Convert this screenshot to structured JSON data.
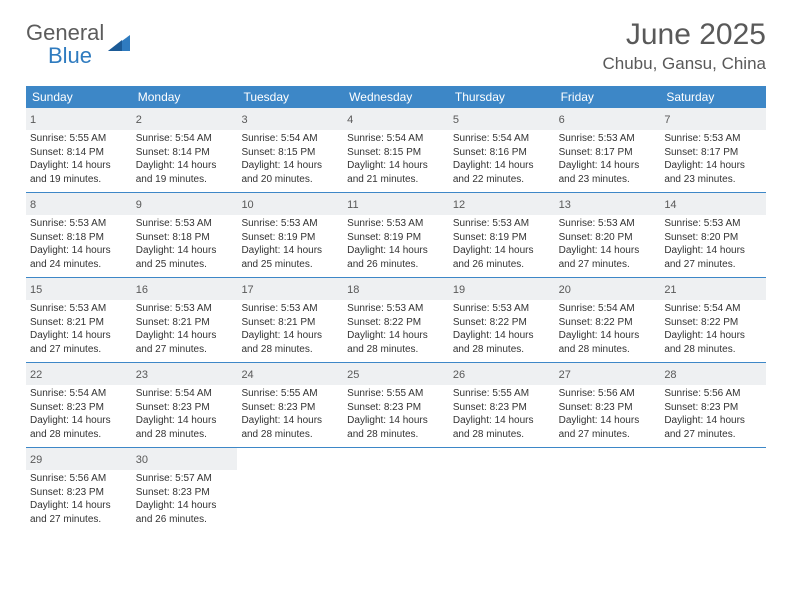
{
  "brand": {
    "part1": "General",
    "part2": "Blue"
  },
  "title": "June 2025",
  "location": "Chubu, Gansu, China",
  "colors": {
    "header_bg": "#3d87c7",
    "header_text": "#ffffff",
    "daynum_bg": "#eef0f2",
    "border": "#3d87c7",
    "text": "#333333",
    "title_text": "#595959"
  },
  "weekdays": [
    "Sunday",
    "Monday",
    "Tuesday",
    "Wednesday",
    "Thursday",
    "Friday",
    "Saturday"
  ],
  "days": [
    {
      "n": 1,
      "sunrise": "5:55 AM",
      "sunset": "8:14 PM",
      "daylight": "14 hours and 19 minutes."
    },
    {
      "n": 2,
      "sunrise": "5:54 AM",
      "sunset": "8:14 PM",
      "daylight": "14 hours and 19 minutes."
    },
    {
      "n": 3,
      "sunrise": "5:54 AM",
      "sunset": "8:15 PM",
      "daylight": "14 hours and 20 minutes."
    },
    {
      "n": 4,
      "sunrise": "5:54 AM",
      "sunset": "8:15 PM",
      "daylight": "14 hours and 21 minutes."
    },
    {
      "n": 5,
      "sunrise": "5:54 AM",
      "sunset": "8:16 PM",
      "daylight": "14 hours and 22 minutes."
    },
    {
      "n": 6,
      "sunrise": "5:53 AM",
      "sunset": "8:17 PM",
      "daylight": "14 hours and 23 minutes."
    },
    {
      "n": 7,
      "sunrise": "5:53 AM",
      "sunset": "8:17 PM",
      "daylight": "14 hours and 23 minutes."
    },
    {
      "n": 8,
      "sunrise": "5:53 AM",
      "sunset": "8:18 PM",
      "daylight": "14 hours and 24 minutes."
    },
    {
      "n": 9,
      "sunrise": "5:53 AM",
      "sunset": "8:18 PM",
      "daylight": "14 hours and 25 minutes."
    },
    {
      "n": 10,
      "sunrise": "5:53 AM",
      "sunset": "8:19 PM",
      "daylight": "14 hours and 25 minutes."
    },
    {
      "n": 11,
      "sunrise": "5:53 AM",
      "sunset": "8:19 PM",
      "daylight": "14 hours and 26 minutes."
    },
    {
      "n": 12,
      "sunrise": "5:53 AM",
      "sunset": "8:19 PM",
      "daylight": "14 hours and 26 minutes."
    },
    {
      "n": 13,
      "sunrise": "5:53 AM",
      "sunset": "8:20 PM",
      "daylight": "14 hours and 27 minutes."
    },
    {
      "n": 14,
      "sunrise": "5:53 AM",
      "sunset": "8:20 PM",
      "daylight": "14 hours and 27 minutes."
    },
    {
      "n": 15,
      "sunrise": "5:53 AM",
      "sunset": "8:21 PM",
      "daylight": "14 hours and 27 minutes."
    },
    {
      "n": 16,
      "sunrise": "5:53 AM",
      "sunset": "8:21 PM",
      "daylight": "14 hours and 27 minutes."
    },
    {
      "n": 17,
      "sunrise": "5:53 AM",
      "sunset": "8:21 PM",
      "daylight": "14 hours and 28 minutes."
    },
    {
      "n": 18,
      "sunrise": "5:53 AM",
      "sunset": "8:22 PM",
      "daylight": "14 hours and 28 minutes."
    },
    {
      "n": 19,
      "sunrise": "5:53 AM",
      "sunset": "8:22 PM",
      "daylight": "14 hours and 28 minutes."
    },
    {
      "n": 20,
      "sunrise": "5:54 AM",
      "sunset": "8:22 PM",
      "daylight": "14 hours and 28 minutes."
    },
    {
      "n": 21,
      "sunrise": "5:54 AM",
      "sunset": "8:22 PM",
      "daylight": "14 hours and 28 minutes."
    },
    {
      "n": 22,
      "sunrise": "5:54 AM",
      "sunset": "8:23 PM",
      "daylight": "14 hours and 28 minutes."
    },
    {
      "n": 23,
      "sunrise": "5:54 AM",
      "sunset": "8:23 PM",
      "daylight": "14 hours and 28 minutes."
    },
    {
      "n": 24,
      "sunrise": "5:55 AM",
      "sunset": "8:23 PM",
      "daylight": "14 hours and 28 minutes."
    },
    {
      "n": 25,
      "sunrise": "5:55 AM",
      "sunset": "8:23 PM",
      "daylight": "14 hours and 28 minutes."
    },
    {
      "n": 26,
      "sunrise": "5:55 AM",
      "sunset": "8:23 PM",
      "daylight": "14 hours and 28 minutes."
    },
    {
      "n": 27,
      "sunrise": "5:56 AM",
      "sunset": "8:23 PM",
      "daylight": "14 hours and 27 minutes."
    },
    {
      "n": 28,
      "sunrise": "5:56 AM",
      "sunset": "8:23 PM",
      "daylight": "14 hours and 27 minutes."
    },
    {
      "n": 29,
      "sunrise": "5:56 AM",
      "sunset": "8:23 PM",
      "daylight": "14 hours and 27 minutes."
    },
    {
      "n": 30,
      "sunrise": "5:57 AM",
      "sunset": "8:23 PM",
      "daylight": "14 hours and 26 minutes."
    }
  ],
  "labels": {
    "sunrise": "Sunrise:",
    "sunset": "Sunset:",
    "daylight": "Daylight:"
  },
  "layout": {
    "start_weekday": 0,
    "rows": 5,
    "cols": 7
  }
}
